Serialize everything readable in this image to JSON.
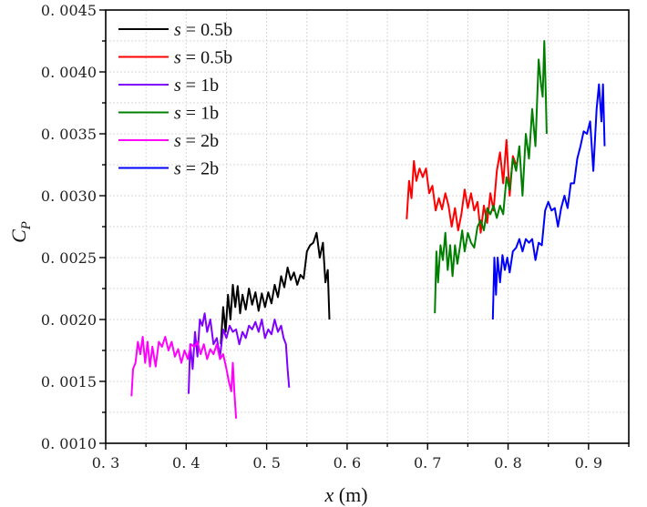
{
  "chart_data": {
    "type": "line",
    "title": "",
    "xlabel_var": "x",
    "xlabel_unit": " (m)",
    "ylabel_var": "C",
    "ylabel_sub": "P",
    "xlim": [
      0.3,
      0.95
    ],
    "ylim": [
      0.001,
      0.0045
    ],
    "xticks": [
      "0.3",
      "0.4",
      "0.5",
      "0.6",
      "0.7",
      "0.8",
      "0.9"
    ],
    "xtick_values": [
      0.3,
      0.4,
      0.5,
      0.6,
      0.7,
      0.8,
      0.9
    ],
    "yticks": [
      "0.0010",
      "0.0015",
      "0.0020",
      "0.0025",
      "0.0030",
      "0.0035",
      "0.0040",
      "0.0045"
    ],
    "ytick_values": [
      0.001,
      0.0015,
      0.002,
      0.0025,
      0.003,
      0.0035,
      0.004,
      0.0045
    ],
    "grid": true,
    "legend_position": "top-left",
    "series": [
      {
        "name": "s = 0.5b",
        "var": "s",
        "rest": " = 0.5b",
        "color": "#000000",
        "x": [
          0.443,
          0.446,
          0.449,
          0.452,
          0.455,
          0.458,
          0.461,
          0.464,
          0.467,
          0.47,
          0.474,
          0.478,
          0.482,
          0.486,
          0.49,
          0.494,
          0.498,
          0.502,
          0.506,
          0.51,
          0.514,
          0.518,
          0.522,
          0.526,
          0.53,
          0.534,
          0.538,
          0.542,
          0.546,
          0.55,
          0.554,
          0.558,
          0.562,
          0.566,
          0.57,
          0.573,
          0.576,
          0.578
        ],
        "y": [
          0.0018,
          0.0021,
          0.0019,
          0.0022,
          0.002,
          0.00228,
          0.0021,
          0.00227,
          0.00205,
          0.0022,
          0.00208,
          0.00225,
          0.00212,
          0.00222,
          0.00207,
          0.00221,
          0.0021,
          0.00222,
          0.00213,
          0.00228,
          0.00218,
          0.00235,
          0.00226,
          0.00242,
          0.00232,
          0.00238,
          0.00228,
          0.00236,
          0.00233,
          0.00255,
          0.0026,
          0.00262,
          0.0027,
          0.0025,
          0.00262,
          0.0023,
          0.0024,
          0.002
        ]
      },
      {
        "name": "s = 0.5b",
        "var": "s",
        "rest": " = 0.5b",
        "color": "#ff0000",
        "x": [
          0.674,
          0.677,
          0.68,
          0.683,
          0.686,
          0.69,
          0.694,
          0.698,
          0.702,
          0.706,
          0.71,
          0.714,
          0.718,
          0.722,
          0.726,
          0.73,
          0.734,
          0.738,
          0.742,
          0.746,
          0.75,
          0.754,
          0.758,
          0.762,
          0.766,
          0.77,
          0.774,
          0.778,
          0.782,
          0.786,
          0.79,
          0.794,
          0.798,
          0.802,
          0.806,
          0.81
        ],
        "y": [
          0.00281,
          0.00312,
          0.00298,
          0.00328,
          0.00312,
          0.00322,
          0.00315,
          0.00322,
          0.00302,
          0.00308,
          0.00288,
          0.00298,
          0.00289,
          0.00302,
          0.00292,
          0.00275,
          0.0029,
          0.00272,
          0.00285,
          0.00305,
          0.0029,
          0.00302,
          0.00288,
          0.00295,
          0.0027,
          0.00292,
          0.00278,
          0.00302,
          0.00288,
          0.0032,
          0.00335,
          0.0031,
          0.00345,
          0.003,
          0.00332,
          0.00325
        ]
      },
      {
        "name": "s = 1b",
        "var": "s",
        "rest": " = 1b",
        "color": "#8000ff",
        "x": [
          0.403,
          0.405,
          0.408,
          0.411,
          0.414,
          0.417,
          0.42,
          0.423,
          0.426,
          0.43,
          0.434,
          0.438,
          0.442,
          0.446,
          0.45,
          0.454,
          0.458,
          0.462,
          0.466,
          0.47,
          0.474,
          0.478,
          0.482,
          0.486,
          0.49,
          0.494,
          0.498,
          0.502,
          0.506,
          0.51,
          0.514,
          0.518,
          0.521,
          0.524,
          0.526,
          0.528
        ],
        "y": [
          0.0014,
          0.0018,
          0.0016,
          0.0019,
          0.0017,
          0.002,
          0.00195,
          0.00205,
          0.0019,
          0.002,
          0.0018,
          0.00185,
          0.0017,
          0.00192,
          0.00185,
          0.00195,
          0.0019,
          0.00192,
          0.0018,
          0.0019,
          0.00185,
          0.00195,
          0.00192,
          0.00198,
          0.0019,
          0.002,
          0.00185,
          0.00192,
          0.00188,
          0.002,
          0.0019,
          0.00195,
          0.00185,
          0.0018,
          0.0016,
          0.00145
        ]
      },
      {
        "name": "s = 1b",
        "var": "s",
        "rest": " = 1b",
        "color": "#008000",
        "x": [
          0.709,
          0.711,
          0.713,
          0.716,
          0.719,
          0.722,
          0.725,
          0.728,
          0.731,
          0.734,
          0.737,
          0.74,
          0.743,
          0.746,
          0.75,
          0.754,
          0.758,
          0.762,
          0.766,
          0.77,
          0.774,
          0.778,
          0.782,
          0.786,
          0.79,
          0.794,
          0.798,
          0.802,
          0.806,
          0.81,
          0.814,
          0.818,
          0.822,
          0.826,
          0.83,
          0.834,
          0.838,
          0.841,
          0.843,
          0.845,
          0.847,
          0.848
        ],
        "y": [
          0.00205,
          0.00255,
          0.0023,
          0.0026,
          0.00248,
          0.0027,
          0.0024,
          0.0026,
          0.00235,
          0.0026,
          0.00245,
          0.00258,
          0.00272,
          0.00255,
          0.0027,
          0.00262,
          0.00258,
          0.00275,
          0.0028,
          0.00272,
          0.0029,
          0.00285,
          0.00292,
          0.00282,
          0.00292,
          0.00285,
          0.00315,
          0.00305,
          0.0033,
          0.0032,
          0.0034,
          0.003,
          0.0035,
          0.0033,
          0.0037,
          0.0034,
          0.0041,
          0.0039,
          0.0038,
          0.00425,
          0.0038,
          0.0035
        ]
      },
      {
        "name": "s = 2b",
        "var": "s",
        "rest": " = 2b",
        "color": "#ff00ff",
        "x": [
          0.332,
          0.334,
          0.337,
          0.34,
          0.343,
          0.346,
          0.349,
          0.352,
          0.355,
          0.358,
          0.362,
          0.366,
          0.37,
          0.374,
          0.378,
          0.382,
          0.386,
          0.39,
          0.394,
          0.398,
          0.402,
          0.406,
          0.41,
          0.414,
          0.418,
          0.422,
          0.426,
          0.43,
          0.434,
          0.438,
          0.442,
          0.446,
          0.45,
          0.453,
          0.456,
          0.458,
          0.46,
          0.462
        ],
        "y": [
          0.00138,
          0.0016,
          0.00165,
          0.00182,
          0.00172,
          0.00186,
          0.00165,
          0.00182,
          0.00162,
          0.00178,
          0.00162,
          0.00182,
          0.00178,
          0.00186,
          0.00175,
          0.00182,
          0.0017,
          0.00176,
          0.00165,
          0.00175,
          0.00168,
          0.0018,
          0.00178,
          0.00182,
          0.00172,
          0.0018,
          0.00168,
          0.00176,
          0.00172,
          0.0018,
          0.00168,
          0.00172,
          0.0016,
          0.0015,
          0.00142,
          0.00165,
          0.0014,
          0.0012
        ]
      },
      {
        "name": "s = 2b",
        "var": "s",
        "rest": " = 2b",
        "color": "#0000ff",
        "x": [
          0.781,
          0.783,
          0.785,
          0.787,
          0.79,
          0.793,
          0.796,
          0.799,
          0.802,
          0.806,
          0.81,
          0.814,
          0.818,
          0.822,
          0.826,
          0.83,
          0.834,
          0.838,
          0.842,
          0.846,
          0.85,
          0.854,
          0.858,
          0.862,
          0.866,
          0.87,
          0.874,
          0.878,
          0.882,
          0.886,
          0.89,
          0.894,
          0.898,
          0.902,
          0.906,
          0.91,
          0.913,
          0.916,
          0.918,
          0.92
        ],
        "y": [
          0.002,
          0.0025,
          0.0022,
          0.0025,
          0.0023,
          0.00252,
          0.0024,
          0.0025,
          0.00238,
          0.00255,
          0.00258,
          0.00265,
          0.00255,
          0.00265,
          0.00262,
          0.00265,
          0.00248,
          0.00262,
          0.0026,
          0.00288,
          0.00295,
          0.00288,
          0.0029,
          0.00275,
          0.0029,
          0.003,
          0.0029,
          0.0031,
          0.0031,
          0.0033,
          0.0034,
          0.00352,
          0.0035,
          0.0036,
          0.0032,
          0.0037,
          0.0039,
          0.0036,
          0.0039,
          0.0034
        ]
      }
    ]
  }
}
